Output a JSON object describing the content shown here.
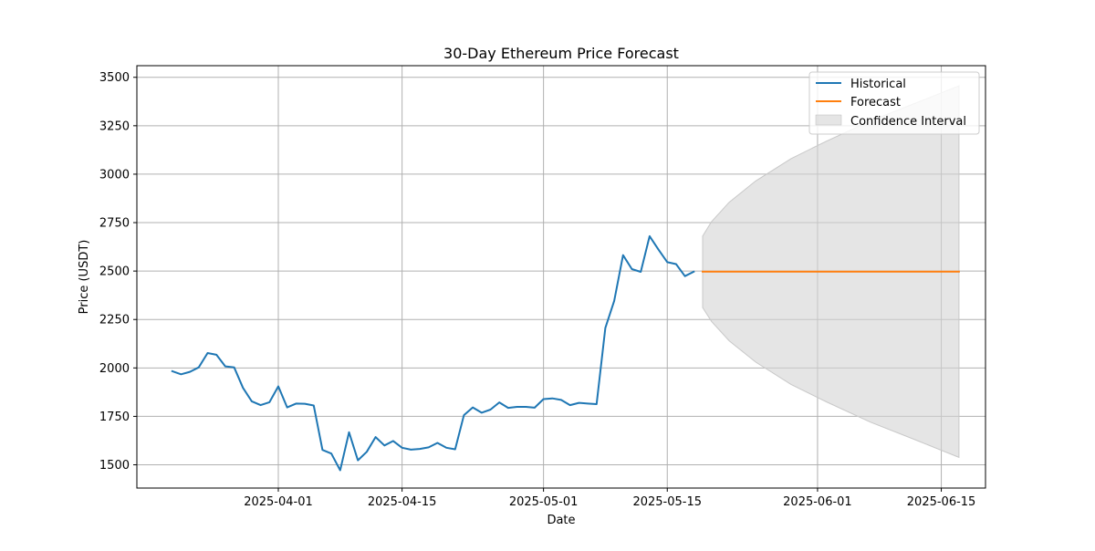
{
  "chart_data": {
    "type": "line",
    "title": "30-Day Ethereum Price Forecast",
    "xlabel": "Date",
    "ylabel": "Price (USDT)",
    "x_axis": {
      "type": "date",
      "range": [
        "2025-03-16",
        "2025-06-20"
      ],
      "ticks": [
        "2025-04-01",
        "2025-04-15",
        "2025-05-01",
        "2025-05-15",
        "2025-06-01",
        "2025-06-15"
      ]
    },
    "y_axis": {
      "range": [
        1380,
        3560
      ],
      "ticks": [
        1500,
        1750,
        2000,
        2250,
        2500,
        2750,
        3000,
        3250,
        3500
      ]
    },
    "grid": true,
    "legend_position": "top-right",
    "series": [
      {
        "name": "Historical",
        "kind": "line",
        "color": "#1f77b4",
        "points": [
          [
            "2025-03-20",
            1983
          ],
          [
            "2025-03-21",
            1967
          ],
          [
            "2025-03-22",
            1980
          ],
          [
            "2025-03-23",
            2003
          ],
          [
            "2025-03-24",
            2077
          ],
          [
            "2025-03-25",
            2068
          ],
          [
            "2025-03-26",
            2008
          ],
          [
            "2025-03-27",
            2003
          ],
          [
            "2025-03-28",
            1897
          ],
          [
            "2025-03-29",
            1828
          ],
          [
            "2025-03-30",
            1808
          ],
          [
            "2025-03-31",
            1823
          ],
          [
            "2025-04-01",
            1905
          ],
          [
            "2025-04-02",
            1796
          ],
          [
            "2025-04-03",
            1816
          ],
          [
            "2025-04-04",
            1815
          ],
          [
            "2025-04-05",
            1806
          ],
          [
            "2025-04-06",
            1577
          ],
          [
            "2025-04-07",
            1558
          ],
          [
            "2025-04-08",
            1472
          ],
          [
            "2025-04-09",
            1668
          ],
          [
            "2025-04-10",
            1523
          ],
          [
            "2025-04-11",
            1567
          ],
          [
            "2025-04-12",
            1643
          ],
          [
            "2025-04-13",
            1600
          ],
          [
            "2025-04-14",
            1623
          ],
          [
            "2025-04-15",
            1588
          ],
          [
            "2025-04-16",
            1578
          ],
          [
            "2025-04-17",
            1582
          ],
          [
            "2025-04-18",
            1590
          ],
          [
            "2025-04-19",
            1613
          ],
          [
            "2025-04-20",
            1588
          ],
          [
            "2025-04-21",
            1580
          ],
          [
            "2025-04-22",
            1756
          ],
          [
            "2025-04-23",
            1796
          ],
          [
            "2025-04-24",
            1769
          ],
          [
            "2025-04-25",
            1785
          ],
          [
            "2025-04-26",
            1822
          ],
          [
            "2025-04-27",
            1794
          ],
          [
            "2025-04-28",
            1799
          ],
          [
            "2025-04-29",
            1799
          ],
          [
            "2025-04-30",
            1795
          ],
          [
            "2025-05-01",
            1839
          ],
          [
            "2025-05-02",
            1843
          ],
          [
            "2025-05-03",
            1835
          ],
          [
            "2025-05-04",
            1808
          ],
          [
            "2025-05-05",
            1820
          ],
          [
            "2025-05-06",
            1816
          ],
          [
            "2025-05-07",
            1813
          ],
          [
            "2025-05-08",
            2207
          ],
          [
            "2025-05-09",
            2346
          ],
          [
            "2025-05-10",
            2582
          ],
          [
            "2025-05-11",
            2510
          ],
          [
            "2025-05-12",
            2496
          ],
          [
            "2025-05-13",
            2680
          ],
          [
            "2025-05-14",
            2611
          ],
          [
            "2025-05-15",
            2546
          ],
          [
            "2025-05-16",
            2536
          ],
          [
            "2025-05-17",
            2474
          ],
          [
            "2025-05-18",
            2497
          ]
        ]
      },
      {
        "name": "Forecast",
        "kind": "line",
        "color": "#ff7f0e",
        "points": [
          [
            "2025-05-19",
            2497
          ],
          [
            "2025-06-17",
            2497
          ]
        ]
      },
      {
        "name": "Confidence Interval",
        "kind": "band",
        "color": "#d3d3d3",
        "x": [
          "2025-05-19",
          "2025-05-20",
          "2025-05-22",
          "2025-05-25",
          "2025-05-29",
          "2025-06-02",
          "2025-06-07",
          "2025-06-12",
          "2025-06-17"
        ],
        "upper": [
          2680,
          2755,
          2855,
          2965,
          3080,
          3170,
          3275,
          3365,
          3456
        ],
        "lower": [
          2312,
          2240,
          2140,
          2030,
          1915,
          1825,
          1720,
          1630,
          1538
        ]
      }
    ]
  }
}
